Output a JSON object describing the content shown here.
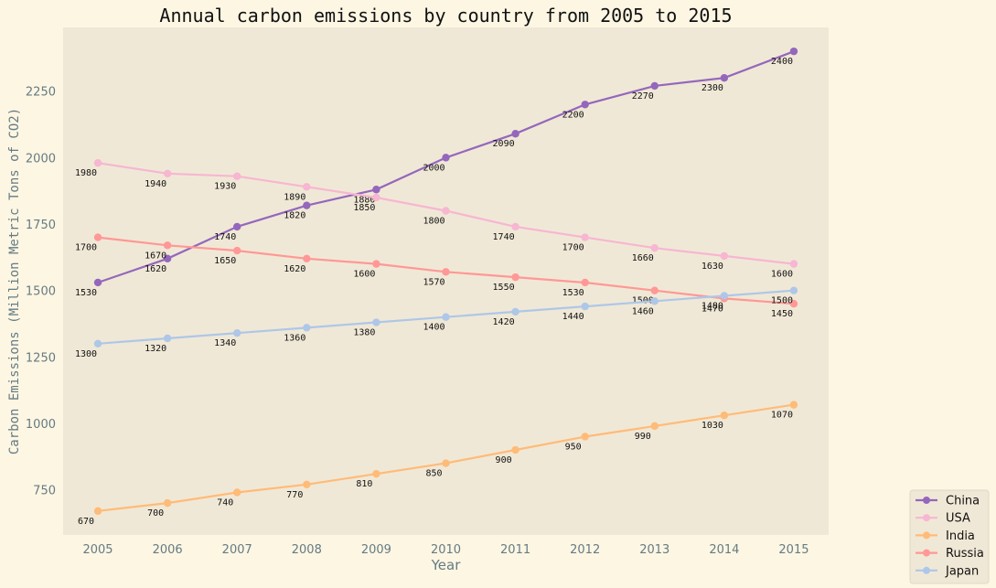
{
  "chart_data": {
    "type": "line",
    "title": "Annual carbon emissions by country from 2005 to 2015",
    "xlabel": "Year",
    "ylabel": "Carbon Emissions (Million Metric Tons of CO2)",
    "x": [
      "2005",
      "2006",
      "2007",
      "2008",
      "2009",
      "2010",
      "2011",
      "2012",
      "2013",
      "2014",
      "2015"
    ],
    "xlim": [
      2004.5,
      2015.5
    ],
    "ylim": [
      580,
      2490
    ],
    "yticks": [
      750,
      1000,
      1250,
      1500,
      1750,
      2000,
      2250
    ],
    "grid": false,
    "legend_position": "bottom-right outside",
    "series": [
      {
        "name": "China",
        "color": "#9467bd",
        "values": [
          1530,
          1620,
          1740,
          1820,
          1880,
          2000,
          2090,
          2200,
          2270,
          2300,
          2400
        ]
      },
      {
        "name": "USA",
        "color": "#f7b6d2",
        "values": [
          1980,
          1940,
          1930,
          1890,
          1850,
          1800,
          1740,
          1700,
          1660,
          1630,
          1600
        ]
      },
      {
        "name": "India",
        "color": "#ffbb78",
        "values": [
          670,
          700,
          740,
          770,
          810,
          850,
          900,
          950,
          990,
          1030,
          1070
        ]
      },
      {
        "name": "Russia",
        "color": "#ff9896",
        "values": [
          1700,
          1670,
          1650,
          1620,
          1600,
          1570,
          1550,
          1530,
          1500,
          1470,
          1450
        ]
      },
      {
        "name": "Japan",
        "color": "#aec7e8",
        "values": [
          1300,
          1320,
          1340,
          1360,
          1380,
          1400,
          1420,
          1440,
          1460,
          1480,
          1500
        ]
      }
    ],
    "colors": {
      "page_bg": "#fdf6e3",
      "plot_bg": "#f0e8d6",
      "tick_text": "#657b83",
      "title_text": "#111111",
      "label_text": "#111111"
    }
  }
}
